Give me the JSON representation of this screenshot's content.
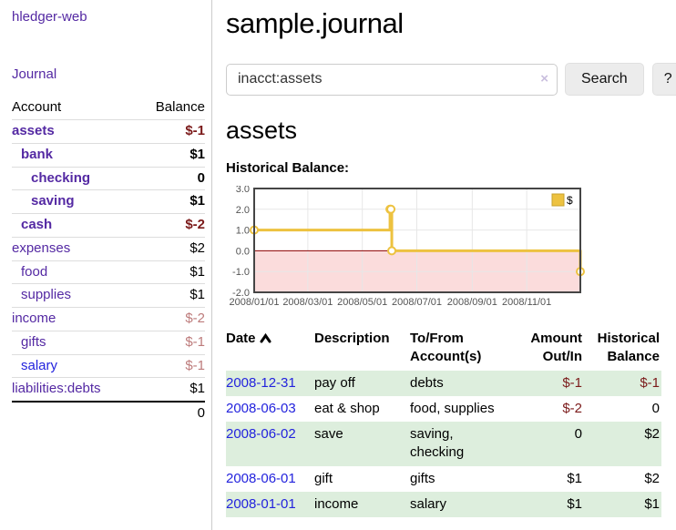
{
  "sidebar": {
    "brand": "hledger-web",
    "journal_link": "Journal",
    "accounts_table": {
      "headers": {
        "account": "Account",
        "balance": "Balance"
      },
      "rows": [
        {
          "account": "assets",
          "balance": "$-1"
        },
        {
          "account": "bank",
          "balance": "$1"
        },
        {
          "account": "checking",
          "balance": "0"
        },
        {
          "account": "saving",
          "balance": "$1"
        },
        {
          "account": "cash",
          "balance": "$-2"
        },
        {
          "account": "expenses",
          "balance": "$2"
        },
        {
          "account": "food",
          "balance": "$1"
        },
        {
          "account": "supplies",
          "balance": "$1"
        },
        {
          "account": "income",
          "balance": "$-2"
        },
        {
          "account": "gifts",
          "balance": "$-1"
        },
        {
          "account": "salary",
          "balance": "$-1"
        },
        {
          "account": "liabilities:debts",
          "balance": "$1"
        }
      ],
      "total": "0"
    }
  },
  "header": {
    "title": "sample.journal"
  },
  "search": {
    "value": "inacct:assets",
    "clear_icon": "×",
    "search_button": "Search",
    "help_button": "?"
  },
  "account_page": {
    "heading": "assets",
    "chart_label": "Historical Balance:"
  },
  "chart_data": {
    "type": "line",
    "steps": true,
    "title": "Historical Balance",
    "legend": {
      "position": "top-right",
      "entries": [
        {
          "label": "$",
          "color": "#edc240"
        }
      ]
    },
    "x_domain_days": [
      0,
      365
    ],
    "xticks": [
      {
        "day": 0,
        "label": "2008/01/01"
      },
      {
        "day": 60,
        "label": "2008/03/01"
      },
      {
        "day": 121,
        "label": "2008/05/01"
      },
      {
        "day": 182,
        "label": "2008/07/01"
      },
      {
        "day": 244,
        "label": "2008/09/01"
      },
      {
        "day": 305,
        "label": "2008/11/01"
      }
    ],
    "ylim": [
      -2,
      3
    ],
    "yticks": [
      {
        "v": 3,
        "label": "3.0"
      },
      {
        "v": 2,
        "label": "2.0"
      },
      {
        "v": 1,
        "label": "1.0"
      },
      {
        "v": 0,
        "label": "0.0"
      },
      {
        "v": -1,
        "label": "-1.0"
      },
      {
        "v": -2,
        "label": "-2.0"
      }
    ],
    "series": [
      {
        "name": "$",
        "color": "#edc240",
        "points": [
          {
            "date": "2008-01-01",
            "day": 0,
            "value": 1
          },
          {
            "date": "2008-06-01",
            "day": 152,
            "value": 2
          },
          {
            "date": "2008-06-02",
            "day": 153,
            "value": 2
          },
          {
            "date": "2008-06-03",
            "day": 154,
            "value": 0
          },
          {
            "date": "2008-12-31",
            "day": 365,
            "value": -1
          }
        ]
      }
    ],
    "negative_region_fill": "#fbdcdc",
    "zero_line_color": "#8b0000",
    "grid_color": "#e7e7e7",
    "border_color": "#454545",
    "tick_label_color": "#545454"
  },
  "register_table": {
    "headers": {
      "date": "Date",
      "description": "Description",
      "accounts_l1": "To/From",
      "accounts_l2": "Account(s)",
      "amount_l1": "Amount",
      "amount_l2": "Out/In",
      "balance_l1": "Historical",
      "balance_l2": "Balance"
    },
    "rows": [
      {
        "date": "2008-12-31",
        "description": "pay off",
        "accounts": "debts",
        "amount": "$-1",
        "balance": "$-1"
      },
      {
        "date": "2008-06-03",
        "description": "eat & shop",
        "accounts": "food, supplies",
        "amount": "$-2",
        "balance": "0"
      },
      {
        "date": "2008-06-02",
        "description": "save",
        "accounts": "saving, checking",
        "amount": "0",
        "balance": "$2"
      },
      {
        "date": "2008-06-01",
        "description": "gift",
        "accounts": "gifts",
        "amount": "$1",
        "balance": "$2"
      },
      {
        "date": "2008-01-01",
        "description": "income",
        "accounts": "salary",
        "amount": "$1",
        "balance": "$1"
      }
    ]
  }
}
